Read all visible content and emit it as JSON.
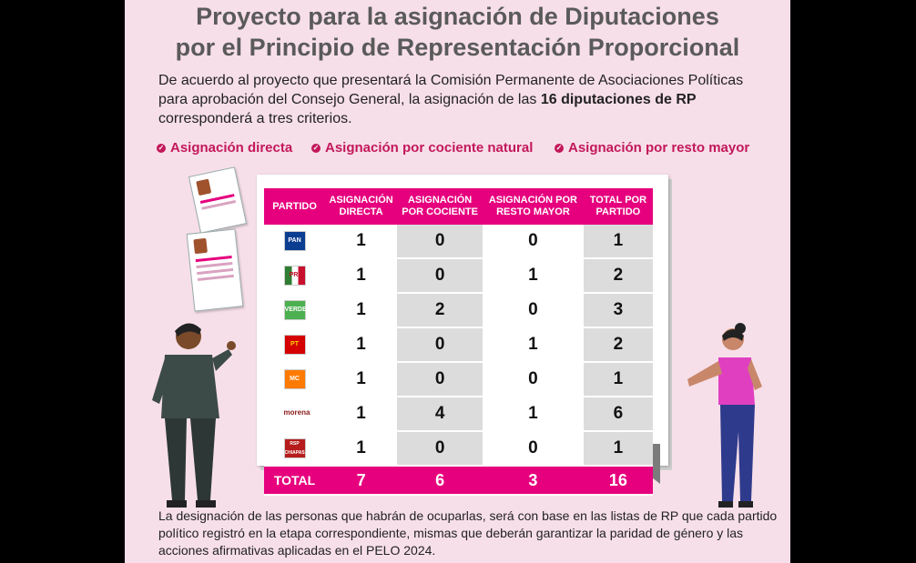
{
  "title": {
    "line1": "Proyecto para la asignación de Diputaciones",
    "line2": "por el Principio de Representación Proporcional"
  },
  "intro": {
    "part1": "De acuerdo al proyecto que presentará la Comisión Permanente de Asociaciones Políticas para aprobación del Consejo General, la asignación de las ",
    "bold": "16 diputaciones de RP",
    "part2": " corresponderá a tres criterios."
  },
  "criteria": [
    "Asignación directa",
    "Asignación por cociente natural",
    "Asignación por resto mayor"
  ],
  "table": {
    "headers": [
      "PARTIDO",
      "ASIGNACIÓN DIRECTA",
      "ASIGNACIÓN POR COCIENTE",
      "ASIGNACIÓN POR RESTO MAYOR",
      "TOTAL POR PARTIDO"
    ],
    "rows": [
      {
        "logo": "PAN",
        "color": "#0b3d91",
        "directa": "1",
        "cociente": "0",
        "resto": "0",
        "total": "1"
      },
      {
        "logo": "PRI",
        "color": "#c8102e",
        "directa": "1",
        "cociente": "0",
        "resto": "1",
        "total": "2"
      },
      {
        "logo": "VERDE",
        "color": "#4caf50",
        "directa": "1",
        "cociente": "2",
        "resto": "0",
        "total": "3"
      },
      {
        "logo": "PT",
        "color": "#d50000",
        "directa": "1",
        "cociente": "0",
        "resto": "1",
        "total": "2"
      },
      {
        "logo": "MC",
        "color": "#ff7a00",
        "directa": "1",
        "cociente": "0",
        "resto": "0",
        "total": "1"
      },
      {
        "logo": "morena",
        "color": "#8b1a1a",
        "directa": "1",
        "cociente": "4",
        "resto": "1",
        "total": "6"
      },
      {
        "logo": "RSP CHIAPAS",
        "color": "#b71c1c",
        "directa": "1",
        "cociente": "0",
        "resto": "0",
        "total": "1"
      }
    ],
    "total": {
      "label": "TOTAL",
      "directa": "7",
      "cociente": "6",
      "resto": "3",
      "total": "16"
    }
  },
  "footer": "La designación de las personas que habrán de ocuparlas, será con base en las listas de RP que cada partido político registró en la etapa correspondiente, mismas que deberán garantizar la paridad de género y las acciones afirmativas aplicadas en el PELO 2024.",
  "colors": {
    "accent": "#e6007e",
    "criteria": "#c2185b",
    "background": "#f7dfe9"
  }
}
